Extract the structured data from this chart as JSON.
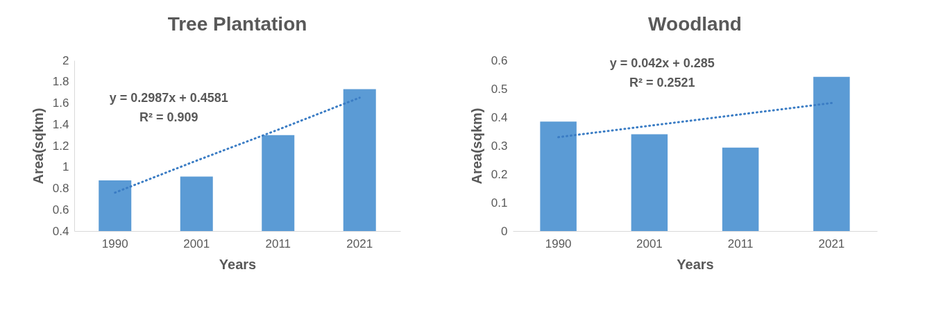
{
  "chart_data": [
    {
      "type": "bar",
      "title": "Tree Plantation",
      "xlabel": "Years",
      "ylabel": "Area(sqkm)",
      "categories": [
        "1990",
        "2001",
        "2011",
        "2021"
      ],
      "series": [
        {
          "color": "#5b9bd5",
          "values": [
            0.875,
            0.91,
            1.3,
            1.73
          ]
        },
        {
          "type": "line",
          "color": "#3a7cc4",
          "line_style": "dotted",
          "values": [
            0.76,
            1.06,
            1.35,
            1.65
          ]
        }
      ],
      "ylim": [
        0.4,
        2
      ],
      "yticks": [
        {
          "value": 0.4,
          "label": "0.4"
        },
        {
          "value": 0.6,
          "label": "0.6"
        },
        {
          "value": 0.8,
          "label": "0.8"
        },
        1,
        {
          "value": 1.2,
          "label": "1.2"
        },
        {
          "value": 1.4,
          "label": "1.4"
        },
        {
          "value": 1.6,
          "label": "1.6"
        },
        {
          "value": 1.8,
          "label": "1.8"
        },
        2
      ],
      "annotations": [
        "y = 0.2987x + 0.4581",
        "R² = 0.909"
      ],
      "grid": false
    },
    {
      "type": "bar",
      "title": "Woodland",
      "xlabel": "Years",
      "ylabel": "Area(sqkm)",
      "categories": [
        "1990",
        "2001",
        "2011",
        "2021"
      ],
      "series": [
        {
          "color": "#5b9bd5",
          "values": [
            0.385,
            0.34,
            0.293,
            0.542
          ]
        },
        {
          "type": "line",
          "color": "#3a7cc4",
          "line_style": "dotted",
          "values": [
            0.33,
            0.37,
            0.41,
            0.45
          ]
        }
      ],
      "ylim": [
        0,
        0.6
      ],
      "yticks": [
        0,
        0.1,
        0.2,
        0.3,
        0.4,
        0.5,
        0.6
      ],
      "annotations": [
        "y = 0.042x + 0.285",
        "R² = 0.2521"
      ],
      "grid": false
    }
  ]
}
